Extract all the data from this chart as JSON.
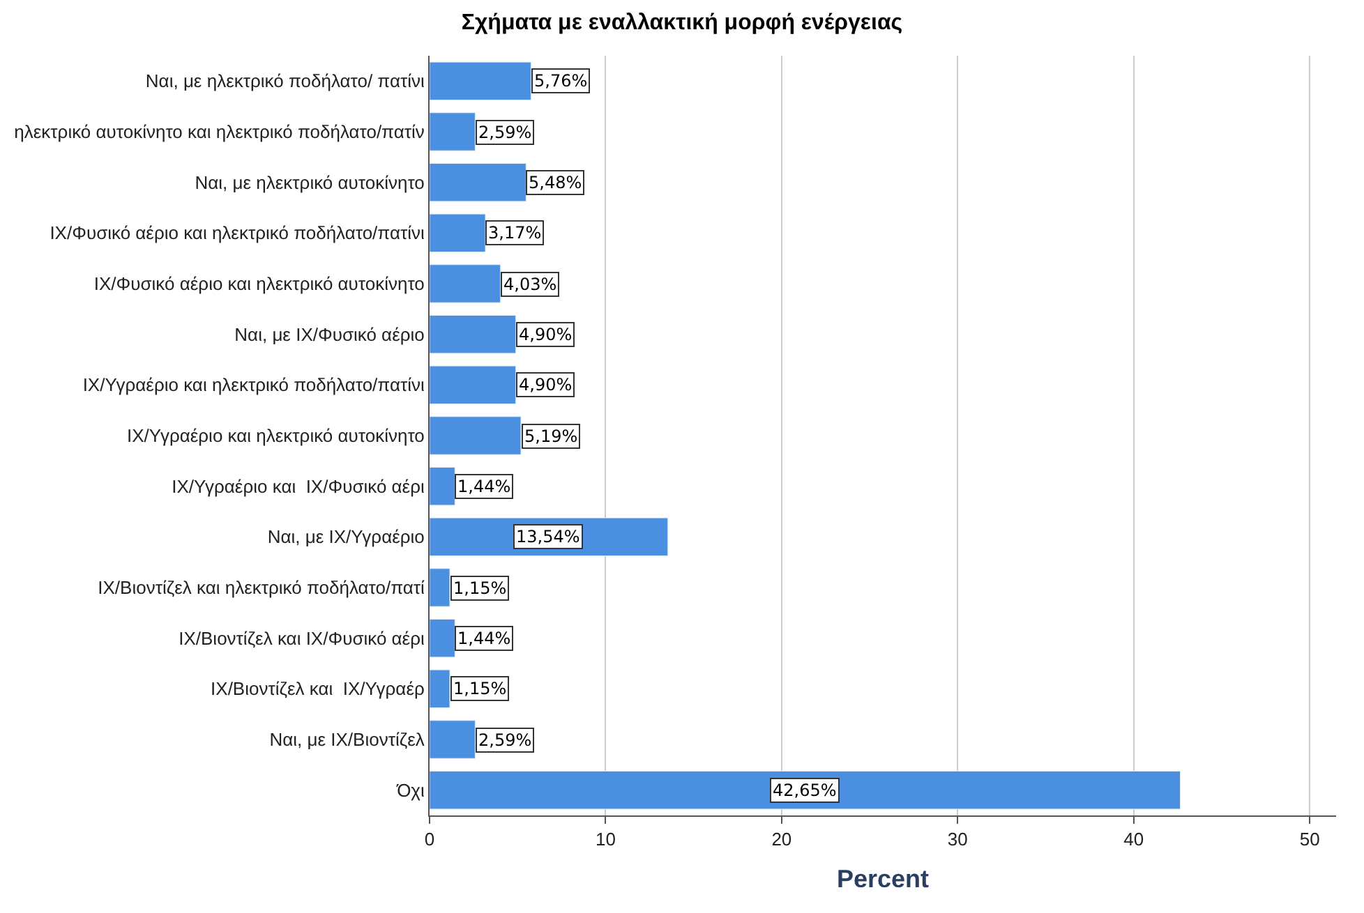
{
  "chart_data": {
    "type": "bar",
    "orientation": "horizontal",
    "title": "Σχήματα με εναλλακτική μορφή ενέργειας",
    "xlabel": "Percent",
    "categories": [
      "Ναι, με ηλεκτρικό ποδήλατο/ πατίνι",
      "ηλεκτρικό αυτοκίνητο και ηλεκτρικό ποδήλατο/πατίν",
      "Ναι, με ηλεκτρικό αυτοκίνητο",
      "ΙΧ/Φυσικό αέριο και ηλεκτρικό ποδήλατο/πατίνι",
      "ΙΧ/Φυσικό αέριο και ηλεκτρικό αυτοκίνητο",
      "Ναι, με ΙΧ/Φυσικό αέριο",
      "ΙΧ/Υγραέριο και ηλεκτρικό ποδήλατο/πατίνι",
      "ΙΧ/Υγραέριο και ηλεκτρικό αυτοκίνητο",
      "ΙΧ/Υγραέριο και  ΙΧ/Φυσικό αέρι",
      "Ναι, με ΙΧ/Υγραέριο",
      "ΙΧ/Βιοντίζελ και ηλεκτρικό ποδήλατο/πατί",
      "ΙΧ/Βιοντίζελ και ΙΧ/Φυσικό αέρι",
      "ΙΧ/Βιοντίζελ και  ΙΧ/Υγραέρ",
      "Ναι, με ΙΧ/Βιοντίζελ",
      "Όχι"
    ],
    "values": [
      5.76,
      2.59,
      5.48,
      3.17,
      4.03,
      4.9,
      4.9,
      5.19,
      1.44,
      13.54,
      1.15,
      1.44,
      1.15,
      2.59,
      42.65
    ],
    "value_labels": [
      "5,76%",
      "2,59%",
      "5,48%",
      "3,17%",
      "4,03%",
      "4,90%",
      "4,90%",
      "5,19%",
      "1,44%",
      "13,54%",
      "1,15%",
      "1,44%",
      "1,15%",
      "2,59%",
      "42,65%"
    ],
    "color": "#4a8fe0",
    "xlim": [
      0,
      51.5
    ],
    "xticks": [
      0,
      10,
      20,
      30,
      40,
      50
    ],
    "grid": "x"
  }
}
